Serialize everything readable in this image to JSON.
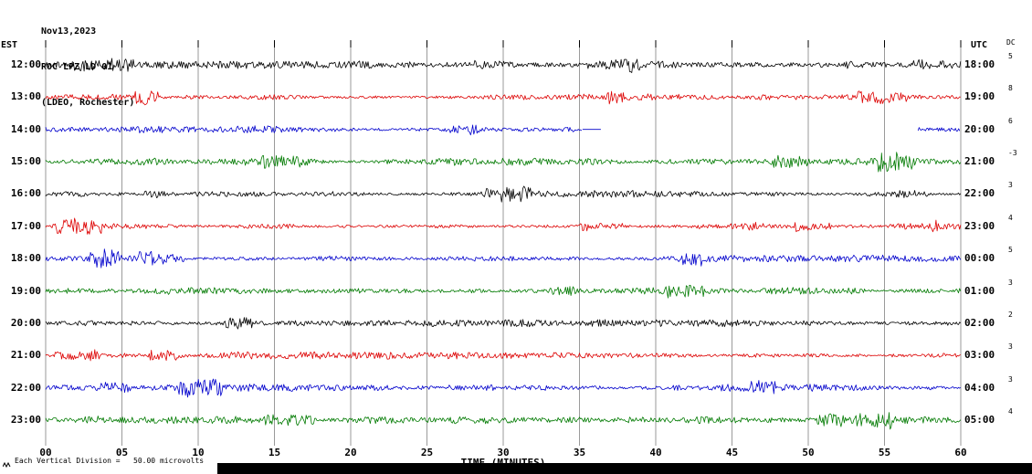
{
  "header": {
    "date": "Nov13,2023",
    "station": "ROC LPZ LD 01",
    "location": "(LDEO, Rochester)"
  },
  "axes": {
    "left_label": "EST",
    "right_label": "UTC",
    "dc_label": "DC",
    "x_label": "TIME (MINUTES)",
    "x_tick_labels": [
      "00",
      "05",
      "10",
      "15",
      "20",
      "25",
      "30",
      "35",
      "40",
      "45",
      "50",
      "55",
      "60"
    ],
    "x_tick_minutes": [
      0,
      5,
      10,
      15,
      20,
      25,
      30,
      35,
      40,
      45,
      50,
      55,
      60
    ]
  },
  "footer": {
    "scale_note": "Each Vertical Division =   50.00 microvolts"
  },
  "chart_data": {
    "type": "line",
    "title": "ROC LPZ LD 01 helicorder (LDEO, Rochester) Nov13,2023",
    "x_range_minutes": [
      0,
      60
    ],
    "minutes_per_row": 60,
    "grid": "vertical gridlines every 5 minutes",
    "waveform_note": "continuous band-limited seismic noise, typical amplitude about 1-2 vertical divisions with intermittent larger bursts",
    "rows": [
      {
        "est": "12:00",
        "utc": "18:00",
        "dc": "5",
        "color": "#000000",
        "segments": [
          [
            0,
            60
          ]
        ]
      },
      {
        "est": "13:00",
        "utc": "19:00",
        "dc": "8",
        "color": "#dd0000",
        "segments": [
          [
            0,
            60
          ]
        ]
      },
      {
        "est": "14:00",
        "utc": "20:00",
        "dc": "6",
        "color": "#0000cc",
        "segments": [
          [
            0,
            35.2
          ],
          [
            57.2,
            60
          ]
        ],
        "flat_segments": [
          [
            35.2,
            36.4
          ]
        ]
      },
      {
        "est": "15:00",
        "utc": "21:00",
        "dc": "-3",
        "color": "#007a00",
        "segments": [
          [
            0,
            60
          ]
        ]
      },
      {
        "est": "16:00",
        "utc": "22:00",
        "dc": "3",
        "color": "#000000",
        "segments": [
          [
            0,
            60
          ]
        ]
      },
      {
        "est": "17:00",
        "utc": "23:00",
        "dc": "4",
        "color": "#dd0000",
        "segments": [
          [
            0,
            60
          ]
        ]
      },
      {
        "est": "18:00",
        "utc": "00:00",
        "dc": "5",
        "color": "#0000cc",
        "segments": [
          [
            0,
            60
          ]
        ]
      },
      {
        "est": "19:00",
        "utc": "01:00",
        "dc": "3",
        "color": "#007a00",
        "segments": [
          [
            0,
            60
          ]
        ]
      },
      {
        "est": "20:00",
        "utc": "02:00",
        "dc": "2",
        "color": "#000000",
        "segments": [
          [
            0,
            60
          ]
        ]
      },
      {
        "est": "21:00",
        "utc": "03:00",
        "dc": "3",
        "color": "#dd0000",
        "segments": [
          [
            0,
            60
          ]
        ]
      },
      {
        "est": "22:00",
        "utc": "04:00",
        "dc": "3",
        "color": "#0000cc",
        "segments": [
          [
            0,
            60
          ]
        ]
      },
      {
        "est": "23:00",
        "utc": "05:00",
        "dc": "4",
        "color": "#007a00",
        "segments": [
          [
            0,
            60
          ]
        ]
      }
    ]
  }
}
